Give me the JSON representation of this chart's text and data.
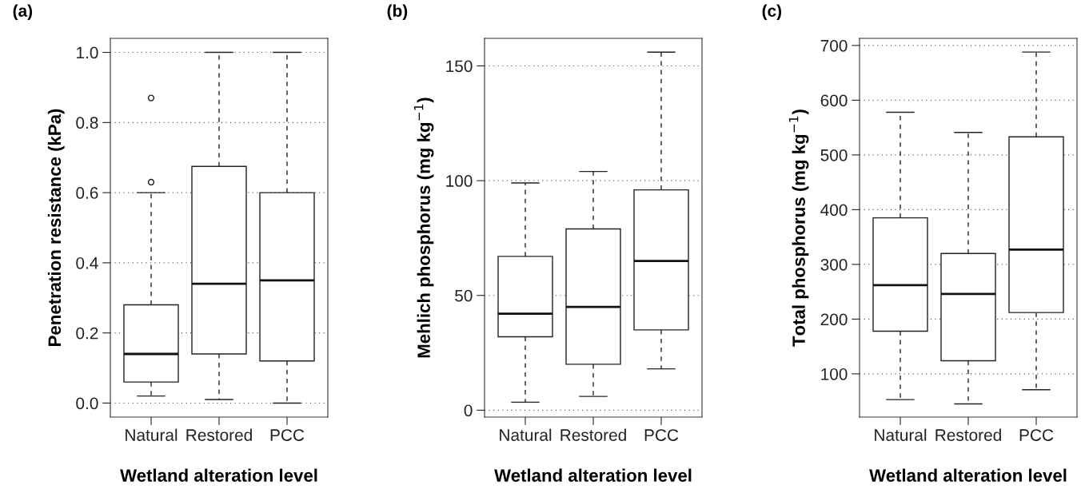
{
  "chart_data": [
    {
      "type": "box",
      "title": "(a)",
      "xlabel": "Wetland alteration level",
      "ylabel": "Penetration resistance (kPa)",
      "categories": [
        "Natural",
        "Restored",
        "PCC"
      ],
      "boxes": [
        {
          "low": 0.02,
          "q1": 0.06,
          "median": 0.14,
          "q3": 0.28,
          "high": 0.6,
          "outliers": [
            0.63,
            0.87
          ]
        },
        {
          "low": 0.01,
          "q1": 0.14,
          "median": 0.34,
          "q3": 0.675,
          "high": 1.0
        },
        {
          "low": 0.0,
          "q1": 0.12,
          "median": 0.35,
          "q3": 0.6,
          "high": 1.0
        }
      ],
      "ylim": [
        -0.04,
        1.04
      ],
      "yticks": [
        {
          "value": 0,
          "label": "0.0"
        },
        0.2,
        0.4,
        0.6,
        0.8,
        {
          "value": 1,
          "label": "1.0"
        }
      ],
      "grid": "y"
    },
    {
      "type": "box",
      "title": "(b)",
      "xlabel": "Wetland alteration level",
      "ylabel": "Mehlich phosphorus (mg kg$^{−1}$)",
      "categories": [
        "Natural",
        "Restored",
        "PCC"
      ],
      "boxes": [
        {
          "low": 3.5,
          "q1": 32,
          "median": 42,
          "q3": 67,
          "high": 99
        },
        {
          "low": 6,
          "q1": 20,
          "median": 45,
          "q3": 79,
          "high": 104
        },
        {
          "low": 18,
          "q1": 35,
          "median": 65,
          "q3": 96,
          "high": 156
        }
      ],
      "ylim": [
        -3,
        162
      ],
      "yticks": [
        0,
        50,
        100,
        150
      ],
      "grid": "y"
    },
    {
      "type": "box",
      "title": "(c)",
      "xlabel": "Wetland alteration level",
      "ylabel": "Total phosphorus (mg kg$^{−1}$)",
      "categories": [
        "Natural",
        "Restored",
        "PCC"
      ],
      "boxes": [
        {
          "low": 53,
          "q1": 178,
          "median": 262,
          "q3": 385,
          "high": 578
        },
        {
          "low": 45,
          "q1": 124,
          "median": 246,
          "q3": 320,
          "high": 541
        },
        {
          "low": 71,
          "q1": 212,
          "median": 327,
          "q3": 533,
          "high": 688
        }
      ],
      "ylim": [
        21,
        713
      ],
      "yticks": [
        100,
        200,
        300,
        400,
        500,
        600,
        700
      ],
      "grid": "y"
    }
  ]
}
